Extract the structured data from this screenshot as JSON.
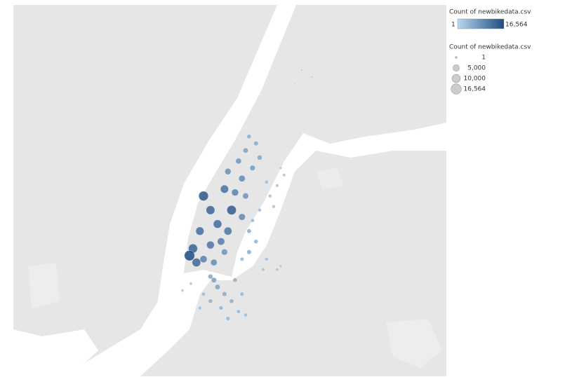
{
  "chart_data": {
    "type": "scatter",
    "xlim": [
      -74.1,
      -73.85
    ],
    "ylim": [
      40.65,
      40.85
    ],
    "color_range": [
      "#b8d8ee",
      "#1e4b82"
    ],
    "color_legend": {
      "title": "Count of newbikedata.csv",
      "min": 1,
      "max": {
        "value": 16564,
        "label": "16,564"
      }
    },
    "size_legend": {
      "title": "Count of newbikedata.csv",
      "values": [
        1,
        {
          "value": 5000,
          "label": "5,000"
        },
        {
          "value": 10000,
          "label": "10,000"
        },
        {
          "value": 16564,
          "label": "16,564"
        }
      ]
    },
    "x": [
      -73.9902,
      -73.9963,
      -73.9862,
      -73.9821,
      -73.9781,
      -73.974,
      -73.9923,
      -73.9862,
      -73.9801,
      -73.9761,
      -73.972,
      -73.968,
      -73.9761,
      -73.97,
      -73.9659,
      -73.9639,
      -73.9599,
      -73.9578,
      -73.9619,
      -73.9659,
      -73.968,
      -73.9902,
      -73.9943,
      -73.9983,
      -73.9842,
      -73.9781,
      -73.9862,
      -73.9821,
      -73.9781,
      -73.974,
      -73.9801,
      -73.97,
      -73.9761,
      -73.9659,
      -73.9862,
      -73.9902,
      -73.9923,
      -73.968,
      -73.972,
      -73.9842,
      -73.9975,
      -74.0024,
      -73.9639,
      -73.9599,
      -73.9639,
      -73.968,
      -73.9538,
      -73.9477,
      -73.9558,
      -73.9619,
      -73.9578,
      -73.9518,
      -73.9477,
      -73.9437,
      -73.9457,
      -73.9538,
      -73.9497,
      -73.9457,
      -73.9335,
      -73.9275,
      -73.9376
    ],
    "y": [
      40.7471,
      40.7188,
      40.7395,
      40.732,
      40.7508,
      40.7395,
      40.7282,
      40.7207,
      40.7226,
      40.7282,
      40.749,
      40.7565,
      40.7603,
      40.7659,
      40.7716,
      40.7791,
      40.7754,
      40.7678,
      40.7622,
      40.7471,
      40.7358,
      40.7131,
      40.7113,
      40.715,
      40.7113,
      40.7169,
      40.7037,
      40.6981,
      40.6943,
      40.6905,
      40.6868,
      40.6849,
      40.6811,
      40.683,
      40.6905,
      40.6943,
      40.6868,
      40.6943,
      40.7018,
      40.7018,
      40.6999,
      40.6962,
      40.7282,
      40.7226,
      40.7169,
      40.7131,
      40.7131,
      40.7075,
      40.7075,
      40.7339,
      40.7395,
      40.7471,
      40.7527,
      40.7584,
      40.7622,
      40.7546,
      40.7414,
      40.7094,
      40.8149,
      40.8112,
      40.8074
    ],
    "values": [
      14000,
      12000,
      11000,
      10000,
      9000,
      13000,
      9500,
      8000,
      7000,
      8500,
      6000,
      5000,
      4500,
      3500,
      2500,
      1500,
      1800,
      2200,
      3000,
      4000,
      5500,
      6500,
      10500,
      16564,
      5000,
      4200,
      2000,
      2500,
      1800,
      1500,
      1200,
      900,
      1100,
      700,
      1300,
      800,
      600,
      1000,
      1400,
      2600,
      300,
      200,
      1500,
      1200,
      1600,
      900,
      600,
      400,
      500,
      800,
      600,
      500,
      400,
      300,
      200,
      700,
      450,
      300,
      50,
      30,
      20
    ]
  }
}
